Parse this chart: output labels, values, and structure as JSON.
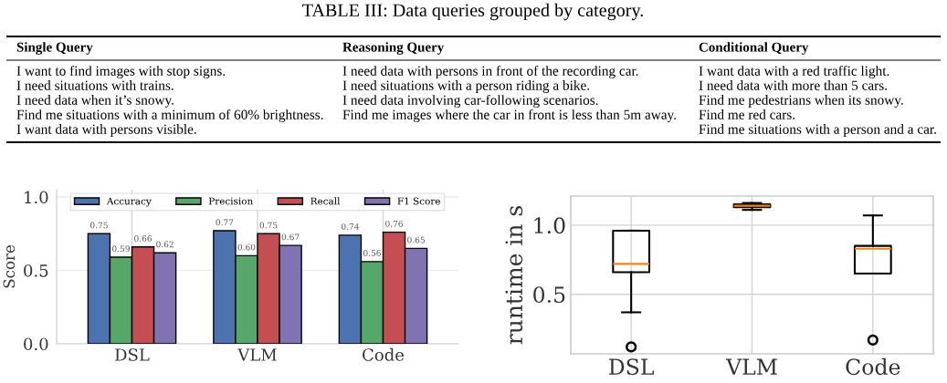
{
  "chart_data": [
    {
      "type": "other",
      "title": "TABLE III: Data queries grouped by category.",
      "categories": [
        "Single Query",
        "Reasoning Query",
        "Conditional Query"
      ],
      "cell_labels": [
        [
          "I want to find images with stop signs.",
          "I need data with persons in front of the recording car.",
          "I want data with a red traffic light."
        ],
        [
          "I need situations with trains.",
          "I need situations with a person riding a bike.",
          "I need data with more than 5 cars."
        ],
        [
          "I need data when it’s snowy.",
          "I need data involving car-following scenarios.",
          "Find me pedestrians when its snowy."
        ],
        [
          "Find me situations with a minimum of 60% brightness.",
          "Find me images where the car in front is less than 5m away.",
          "Find me red cars."
        ],
        [
          "I want data with persons visible.",
          null,
          "Find me situations with a person and a car."
        ]
      ]
    },
    {
      "type": "bar",
      "ylabel": "Score",
      "categories": [
        "DSL",
        "VLM",
        "Code"
      ],
      "series": [
        {
          "name": "Accuracy",
          "color": "#4c72b0",
          "values": [
            0.75,
            0.77,
            0.74
          ],
          "value_labels": [
            "0.75",
            "0.77",
            "0.74"
          ]
        },
        {
          "name": "Precision",
          "color": "#55a868",
          "values": [
            0.59,
            0.6,
            0.56
          ],
          "value_labels": [
            "0.59",
            "0.60",
            "0.56"
          ]
        },
        {
          "name": "Recall",
          "color": "#c44e52",
          "values": [
            0.66,
            0.75,
            0.76
          ],
          "value_labels": [
            "0.66",
            "0.75",
            "0.76"
          ]
        },
        {
          "name": "F1 Score",
          "color": "#8172b2",
          "values": [
            0.62,
            0.67,
            0.65
          ],
          "value_labels": [
            "0.62",
            "0.67",
            "0.65"
          ]
        }
      ],
      "ylim": [
        0,
        1.05
      ],
      "yticks": [
        {
          "value": 0,
          "label": "0.0"
        },
        {
          "value": 0.5,
          "label": "0.5"
        },
        {
          "value": 1.0,
          "label": "1.0"
        }
      ],
      "grid": true,
      "legend": "top"
    },
    {
      "type": "box",
      "ylabel": "runtime in s",
      "categories": [
        "DSL",
        "VLM",
        "Code"
      ],
      "boxes": [
        {
          "low": 0.37,
          "q1": 0.66,
          "median": 0.72,
          "q3": 0.96,
          "high": 0.96,
          "outliers": [
            0.12
          ]
        },
        {
          "low": 1.11,
          "q1": 1.13,
          "median": 1.14,
          "q3": 1.15,
          "high": 1.16
        },
        {
          "low": 0.65,
          "q1": 0.65,
          "median": 0.83,
          "q3": 0.85,
          "high": 1.07,
          "outliers": [
            0.17
          ]
        }
      ],
      "ylim": [
        0.07,
        1.21
      ],
      "yticks": [
        {
          "value": 0.5,
          "label": "0.5"
        },
        {
          "value": 1.0,
          "label": "1.0"
        }
      ],
      "grid": true
    }
  ]
}
